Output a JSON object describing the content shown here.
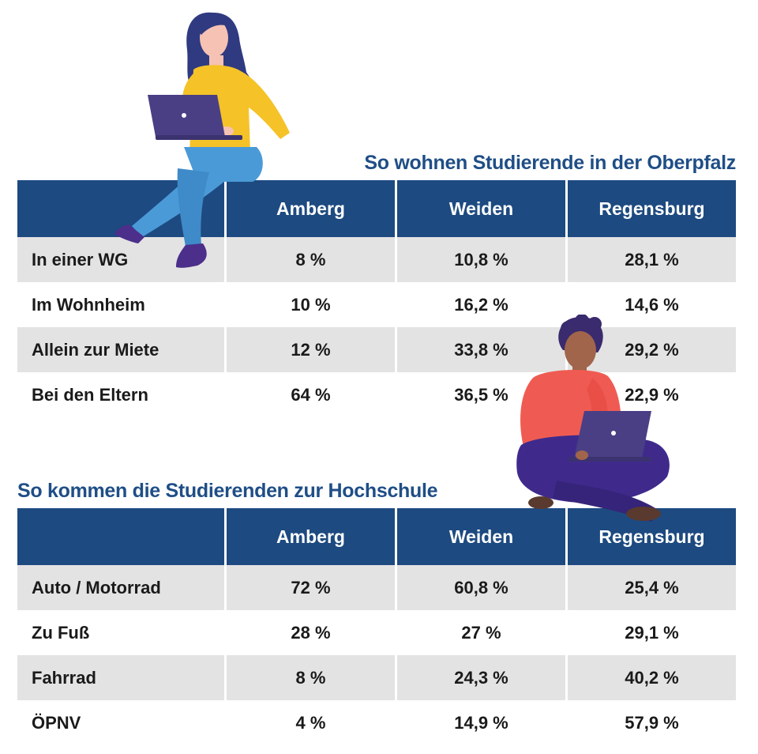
{
  "housing": {
    "title": "So wohnen Studierende in der Oberpfalz",
    "columns": [
      "",
      "Amberg",
      "Weiden",
      "Regensburg"
    ],
    "rows": [
      {
        "label": "In einer WG",
        "values": [
          "8 %",
          "10,8 %",
          "28,1 %"
        ]
      },
      {
        "label": "Im Wohnheim",
        "values": [
          "10 %",
          "16,2 %",
          "14,6 %"
        ]
      },
      {
        "label": "Allein zur Miete",
        "values": [
          "12 %",
          "33,8 %",
          "29,2 %"
        ]
      },
      {
        "label": "Bei den Eltern",
        "values": [
          "64 %",
          "36,5 %",
          "22,9 %"
        ]
      }
    ]
  },
  "commute": {
    "title": "So kommen die Studierenden zur Hochschule",
    "columns": [
      "",
      "Amberg",
      "Weiden",
      "Regensburg"
    ],
    "rows": [
      {
        "label": "Auto / Motorrad",
        "values": [
          "72 %",
          "60,8 %",
          "25,4 %"
        ]
      },
      {
        "label": "Zu Fuß",
        "values": [
          "28 %",
          "27 %",
          "29,1 %"
        ]
      },
      {
        "label": "Fahrrad",
        "values": [
          "8 %",
          "24,3 %",
          "40,2 %"
        ]
      },
      {
        "label": "ÖPNV",
        "values": [
          "4 %",
          "14,9 %",
          "57,9 %"
        ]
      }
    ]
  },
  "colors": {
    "header_blue": "#1d4a80",
    "title_blue": "#1f4e86",
    "row_shade": "#e3e3e3"
  },
  "illustrations": [
    "woman-with-laptop-illustration",
    "man-with-laptop-illustration"
  ]
}
